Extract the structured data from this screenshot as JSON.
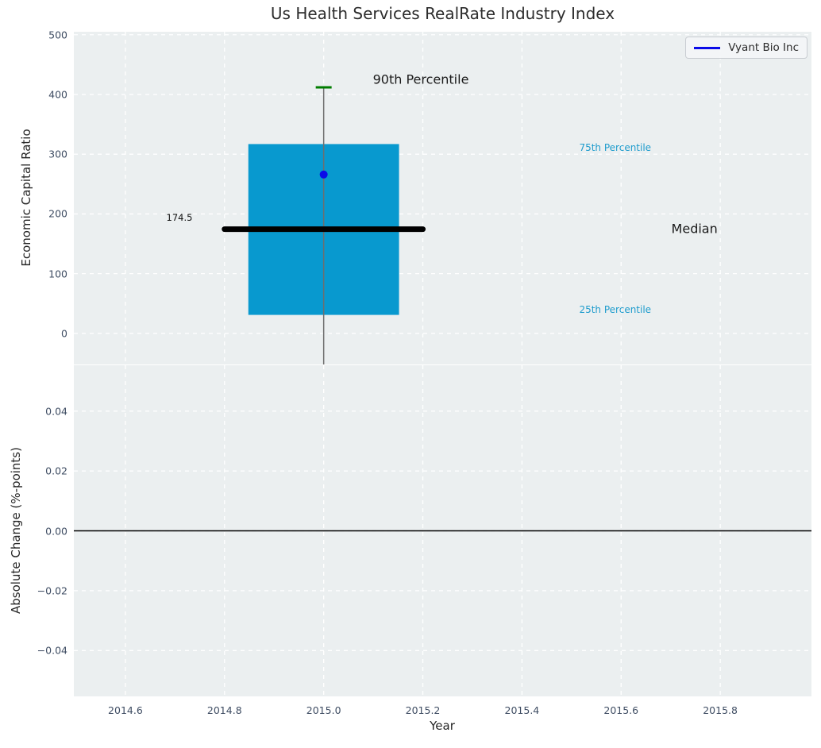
{
  "legend": {
    "label": "Vyant Bio Inc"
  },
  "colors": {
    "axes_bg": "#ebeff0",
    "grid": "#ffffff",
    "box_fill": "#0899cf",
    "whisker": "#6e6e6e",
    "cap_green": "#007d00",
    "median_line": "#000000",
    "point_blue": "#0b0be8",
    "zero_line": "#000000",
    "tick_label": "#3f4d63",
    "percentile_label": "#1f9ccd",
    "annotation_dark": "#1a1a1a"
  },
  "chart_data": [
    {
      "type": "box",
      "title": "Us Health Services RealRate Industry Index",
      "xlabel": "Year",
      "ylabel": "Economic Capital Ratio",
      "series_label": "Vyant Bio Inc",
      "x": 2015.0,
      "stats": {
        "p90_cap": 412,
        "q3": 317,
        "median": 174.5,
        "q1": 31,
        "whisker_low": -52
      },
      "company_point": {
        "x": 2015.0,
        "y": 266
      },
      "box_halfwidth": 0.152,
      "median_halfwidth": 0.2,
      "cap_halfwidth": 0.016,
      "xlim": [
        2014.496,
        2015.984
      ],
      "ylim": [
        -52,
        505
      ],
      "xticks": {
        "values": [
          2014.6,
          2014.8,
          2015.0,
          2015.2,
          2015.4,
          2015.6,
          2015.8
        ],
        "labels": [
          "2014.6",
          "2014.8",
          "2015.0",
          "2015.2",
          "2015.4",
          "2015.6",
          "2015.8"
        ]
      },
      "yticks": {
        "values": [
          0,
          100,
          200,
          300,
          400,
          500
        ],
        "labels": [
          "0",
          "100",
          "200",
          "300",
          "400",
          "500"
        ]
      },
      "grid": true,
      "legend_position": "upper right",
      "annotations": [
        {
          "name": "annotation-90th-percentile",
          "text": "90th Percentile",
          "x": 2015.196,
          "y": 425,
          "color": "#1a1a1a",
          "size": 16
        },
        {
          "name": "annotation-median-value",
          "text": "174.5",
          "x": 2014.709,
          "y": 194,
          "color": "#111111",
          "size": 11.5
        },
        {
          "name": "annotation-75th-percentile",
          "text": "75th Percentile",
          "x": 2015.588,
          "y": 311,
          "color": "#1f9ccd",
          "size": 12
        },
        {
          "name": "annotation-median",
          "text": "Median",
          "x": 2015.748,
          "y": 175,
          "color": "#1a1a1a",
          "size": 16
        },
        {
          "name": "annotation-25th-percentile",
          "text": "25th Percentile",
          "x": 2015.588,
          "y": 40,
          "color": "#1f9ccd",
          "size": 12
        }
      ]
    },
    {
      "type": "line",
      "xlabel": "Year",
      "ylabel": "Absolute Change (%-points)",
      "xlim": [
        2014.496,
        2015.984
      ],
      "ylim": [
        -0.0553,
        0.0553
      ],
      "xticks": {
        "values": [
          2014.6,
          2014.8,
          2015.0,
          2015.2,
          2015.4,
          2015.6,
          2015.8
        ],
        "labels": [
          "2014.6",
          "2014.8",
          "2015.0",
          "2015.2",
          "2015.4",
          "2015.6",
          "2015.8"
        ]
      },
      "yticks": {
        "values": [
          -0.04,
          -0.02,
          0,
          0.02,
          0.04
        ],
        "labels": [
          "−0.04",
          "−0.02",
          "0.00",
          "0.02",
          "0.04"
        ]
      },
      "zero_line_y": 0.0,
      "grid": true,
      "series": []
    }
  ]
}
